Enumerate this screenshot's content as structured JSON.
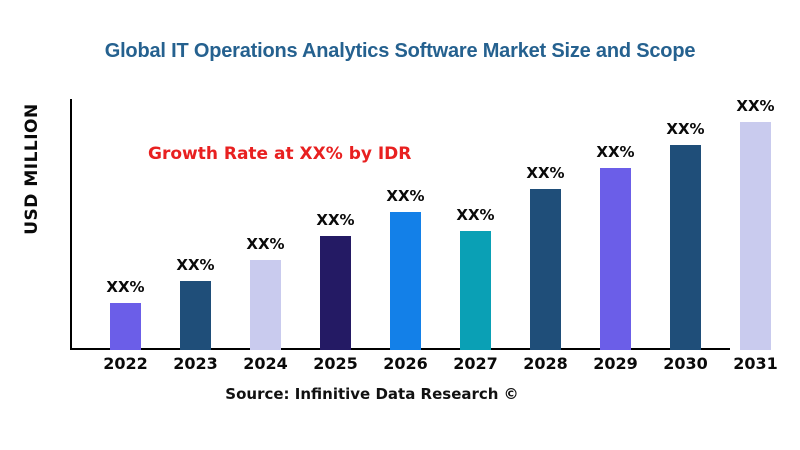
{
  "title": "Global IT Operations Analytics Software  Market Size and Scope",
  "annotation": "Growth Rate at XX% by IDR",
  "source": "Source: Infinitive Data Research ©",
  "colors": {
    "title": "#25618F",
    "annotation": "#E82020",
    "axis": "#000000"
  },
  "chart_data": {
    "type": "bar",
    "title": "Global IT Operations Analytics Software  Market Size and Scope",
    "xlabel": "",
    "ylabel": "USD MILLION",
    "categories": [
      "2022",
      "2023",
      "2024",
      "2025",
      "2026",
      "2027",
      "2028",
      "2029",
      "2030",
      "2031"
    ],
    "values": [
      47,
      69,
      90,
      114,
      138,
      119,
      161,
      182,
      205,
      228
    ],
    "bar_labels": [
      "XX%",
      "XX%",
      "XX%",
      "XX%",
      "XX%",
      "XX%",
      "XX%",
      "XX%",
      "XX%",
      "XX%"
    ],
    "bar_colors": [
      "#6B5EE8",
      "#1F4E79",
      "#C9CBEE",
      "#241A64",
      "#1380E8",
      "#0AA0B5",
      "#1F4E79",
      "#6B5EE8",
      "#1F4E79",
      "#C9CBEE"
    ],
    "ylim": [
      0,
      251
    ],
    "units": "relative bar heights (actual figures masked as XX% in source)",
    "grid": false,
    "legend": false
  }
}
